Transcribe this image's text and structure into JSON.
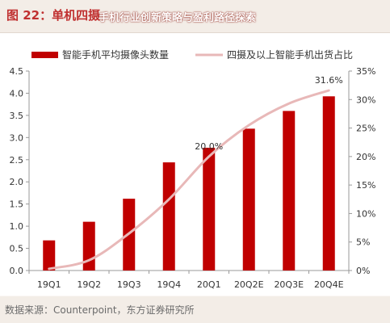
{
  "header": {
    "figure_title": "图 22：单机四摄",
    "overlay_title": "手机行业创新策略与盈利路径探索"
  },
  "source": "数据来源：Counterpoint，东方证券研究所",
  "colors": {
    "bar": "#c00000",
    "line": "#e8b8b8",
    "axis": "#999999",
    "title": "#c03030"
  },
  "chart_data": {
    "type": "bar",
    "categories": [
      "19Q1",
      "19Q2",
      "19Q3",
      "19Q4",
      "20Q1",
      "20Q2E",
      "20Q3E",
      "20Q4E"
    ],
    "series": [
      {
        "name": "智能手机平均摄像头数量",
        "type": "bar",
        "axis": "left",
        "values": [
          0.68,
          1.1,
          1.62,
          2.44,
          2.77,
          3.2,
          3.6,
          3.93
        ]
      },
      {
        "name": "四摄及以上智能手机出货占比",
        "type": "line",
        "axis": "right",
        "values": [
          0.3,
          1.8,
          6.5,
          12.5,
          20.0,
          25.5,
          29.3,
          31.6
        ]
      }
    ],
    "y_left": {
      "lim": [
        0,
        4.5
      ],
      "ticks": [
        0,
        0.5,
        1,
        1.5,
        2,
        2.5,
        3,
        3.5,
        4,
        4.5
      ],
      "tick_labels": [
        "0.0",
        "0.5",
        "1.0",
        "1.5",
        "2.0",
        "2.5",
        "3.0",
        "3.5",
        "4.0",
        "4.5"
      ]
    },
    "y_right": {
      "lim": [
        0,
        35
      ],
      "ticks": [
        0,
        5,
        10,
        15,
        20,
        25,
        30,
        35
      ],
      "tick_labels": [
        "0%",
        "5%",
        "10%",
        "15%",
        "20%",
        "25%",
        "30%",
        "35%"
      ]
    },
    "annotations": [
      {
        "text": "20.0%",
        "series": 1,
        "index": 4
      },
      {
        "text": "31.6%",
        "series": 1,
        "index": 7
      }
    ],
    "legend": "top",
    "grid": false
  }
}
